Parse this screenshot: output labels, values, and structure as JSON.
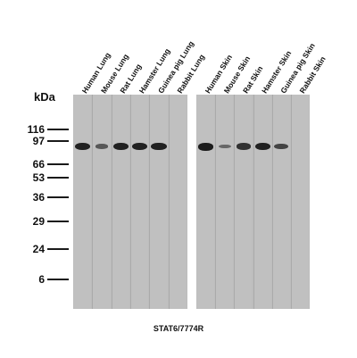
{
  "unit_label": "kDa",
  "markers": [
    {
      "label": "116",
      "kda": 116
    },
    {
      "label": "97",
      "kda": 97
    },
    {
      "label": "66",
      "kda": 66
    },
    {
      "label": "53",
      "kda": 53
    },
    {
      "label": "36",
      "kda": 36
    },
    {
      "label": "29",
      "kda": 29
    },
    {
      "label": "24",
      "kda": 24
    },
    {
      "label": "6",
      "kda": 6
    }
  ],
  "panels": [
    {
      "lanes": [
        {
          "label": "Human Lung",
          "band_intensity": 0.95
        },
        {
          "label": "Mouse Lung",
          "band_intensity": 0.45
        },
        {
          "label": "Rat Lung",
          "band_intensity": 0.95
        },
        {
          "label": "Hamster Lung",
          "band_intensity": 0.95
        },
        {
          "label": "Guinea pig Lung",
          "band_intensity": 0.95
        },
        {
          "label": "Rabbit Lung",
          "band_intensity": 0
        }
      ]
    },
    {
      "lanes": [
        {
          "label": "Human Skin",
          "band_intensity": 1.0
        },
        {
          "label": "Mouse Skin",
          "band_intensity": 0.3
        },
        {
          "label": "Rat Skin",
          "band_intensity": 0.8
        },
        {
          "label": "Hamster Skin",
          "band_intensity": 0.95
        },
        {
          "label": "Guinea pig Skin",
          "band_intensity": 0.65
        },
        {
          "label": "Rabbit Skin",
          "band_intensity": 0
        }
      ]
    }
  ],
  "band_kda": 90,
  "caption": "STAT6/7774R"
}
